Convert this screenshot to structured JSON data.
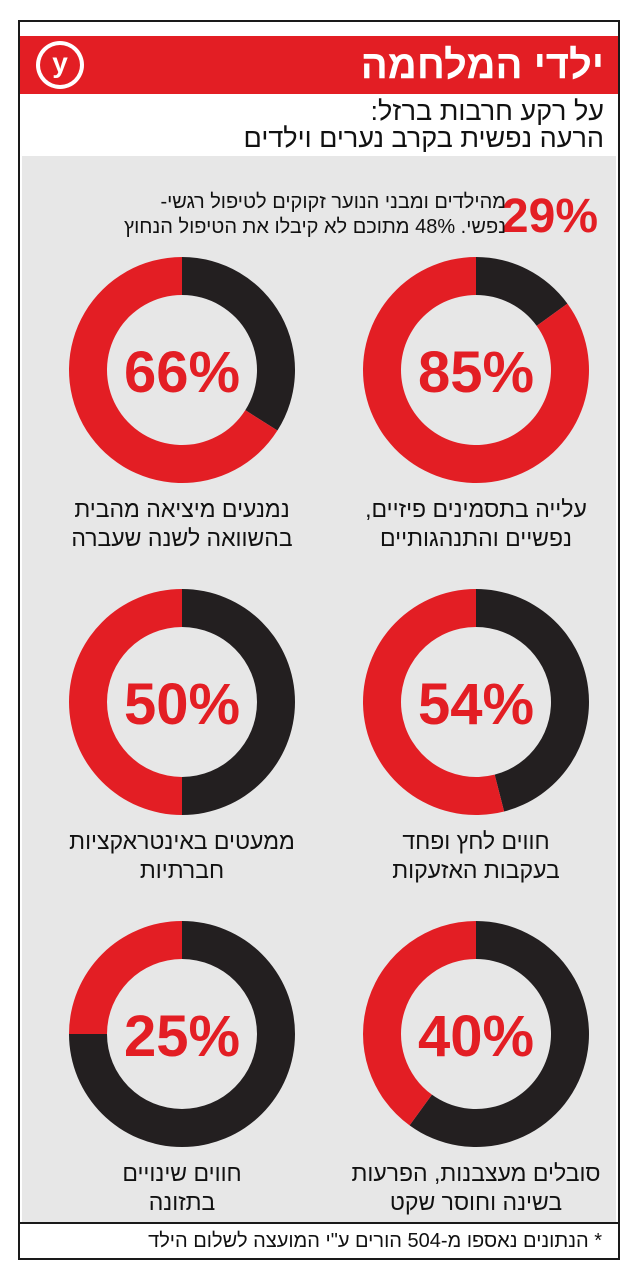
{
  "header": {
    "title": "ילדי המלחמה",
    "logo_letter": "y",
    "subtitle_line1": "על רקע חרבות ברזל:",
    "subtitle_line2": "הרעה נפשית בקרב נערים וילדים"
  },
  "headline": {
    "percent": "29%",
    "line1": "מהילדים ומבני הנוער זקוקים לטיפול רגשי-",
    "line2": "נפשי. 48% מתוכם לא קיבלו את הטיפול הנחוץ"
  },
  "colors": {
    "accent": "#e31e24",
    "dark": "#231f20",
    "panel": "#e7e7e7"
  },
  "chart_data": {
    "type": "pie",
    "donuts": [
      {
        "value": 85,
        "label": "85%",
        "caption_line1": "עלייה בתסמינים פיזיים,",
        "caption_line2": "נפשיים והתנהגותיים"
      },
      {
        "value": 66,
        "label": "66%",
        "caption_line1": "נמנעים מיציאה מהבית",
        "caption_line2": "בהשוואה לשנה שעברה"
      },
      {
        "value": 54,
        "label": "54%",
        "caption_line1": "חווים לחץ ופחד",
        "caption_line2": "בעקבות האזעקות"
      },
      {
        "value": 50,
        "label": "50%",
        "caption_line1": "ממעטים באינטראקציות",
        "caption_line2": "חברתיות"
      },
      {
        "value": 40,
        "label": "40%",
        "caption_line1": "סובלים מעצבנות, הפרעות",
        "caption_line2": "בשינה וחוסר שקט"
      },
      {
        "value": 25,
        "label": "25%",
        "caption_line1": "חווים שינויים",
        "caption_line2": "בתזונה"
      }
    ]
  },
  "footer": {
    "note": "* הנתונים נאספו מ-504 הורים ע\"י המועצה לשלום הילד"
  }
}
